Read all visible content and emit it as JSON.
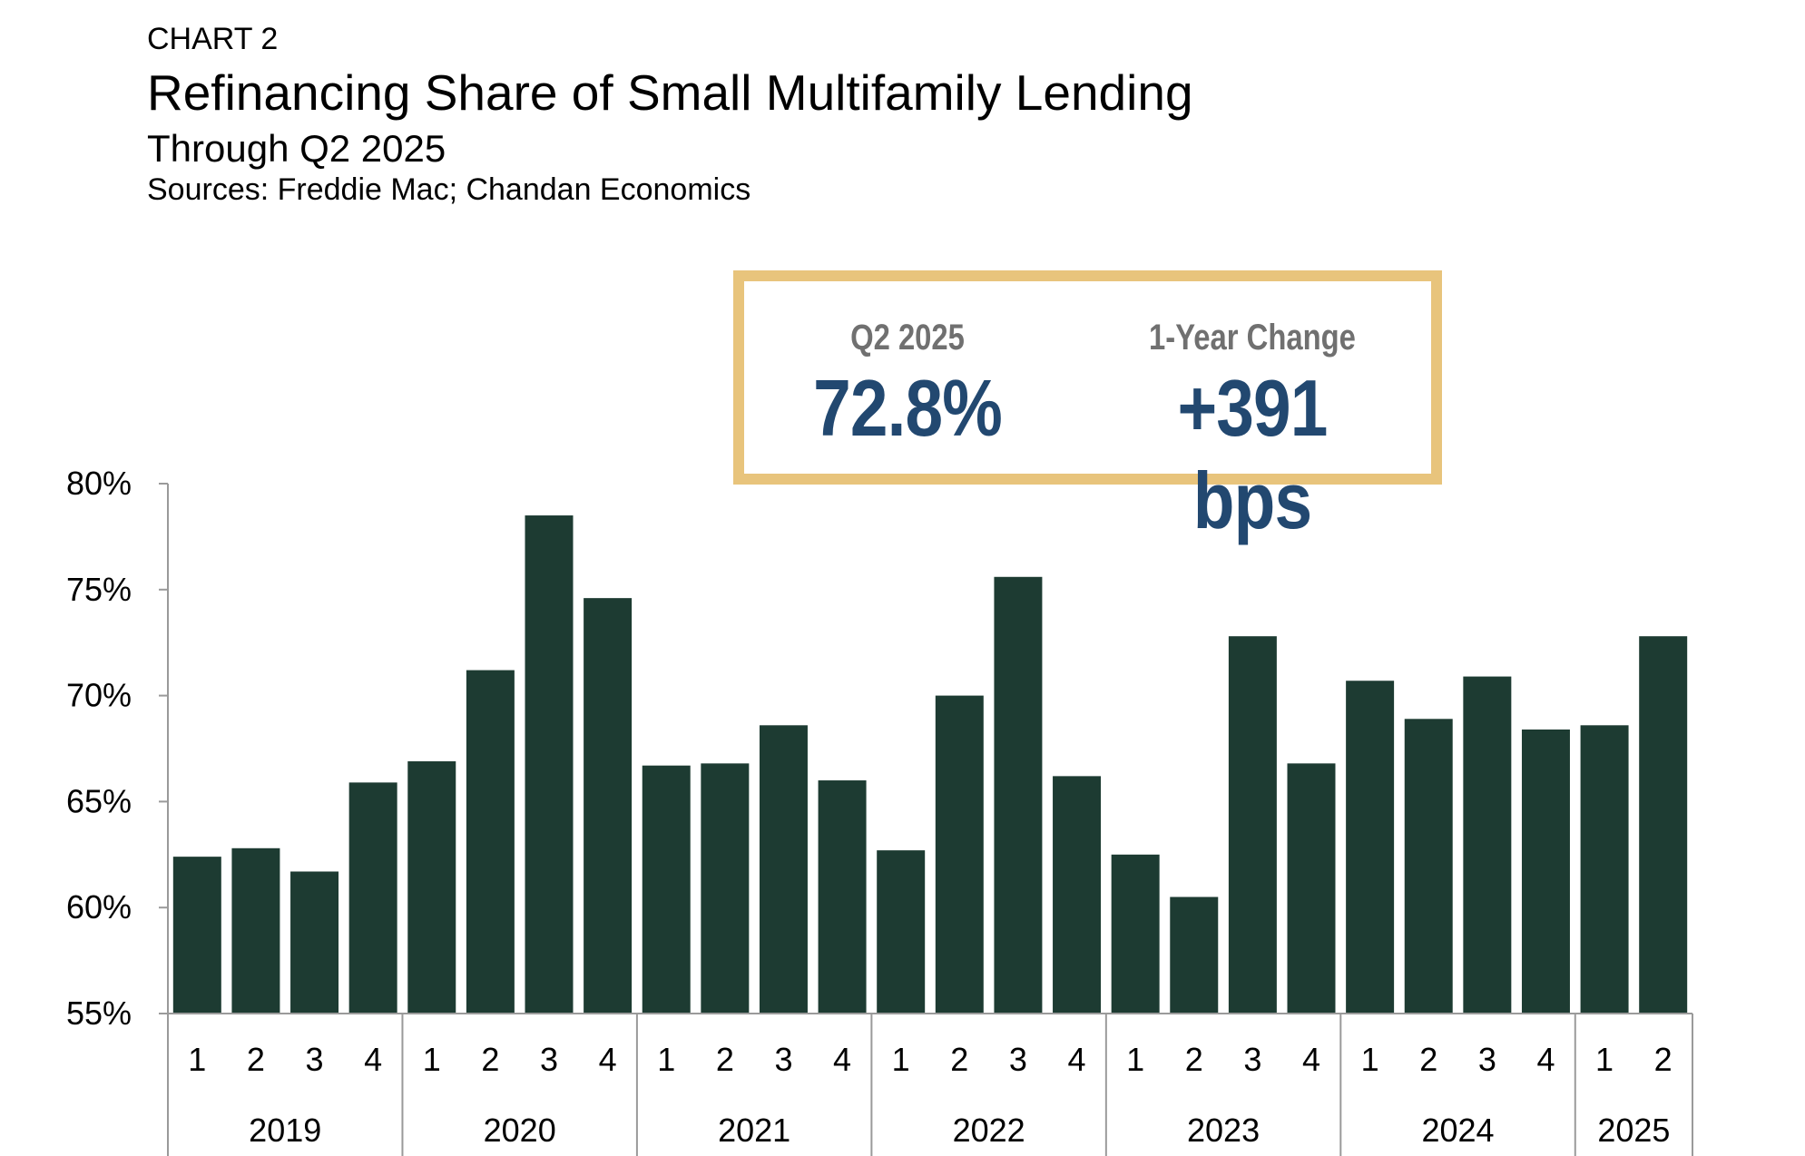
{
  "header": {
    "label": "CHART 2",
    "title": "Refinancing Share of Small Multifamily Lending",
    "subtitle": "Through Q2 2025",
    "sources": "Sources: Freddie Mac; Chandan Economics"
  },
  "kpi": {
    "col1_label": "Q2 2025",
    "col1_value": "72.8%",
    "col2_label": "1-Year Change",
    "col2_value": "+391 bps",
    "border_color": "#e8c47c",
    "value_color": "#224870"
  },
  "chart_data": {
    "type": "bar",
    "bar_color": "#1d3b32",
    "ylim": [
      55,
      80
    ],
    "yticks": [
      "55%",
      "60%",
      "65%",
      "70%",
      "75%",
      "80%"
    ],
    "quarters": [
      "1",
      "2",
      "3",
      "4",
      "1",
      "2",
      "3",
      "4",
      "1",
      "2",
      "3",
      "4",
      "1",
      "2",
      "3",
      "4",
      "1",
      "2",
      "3",
      "4",
      "1",
      "2",
      "3",
      "4",
      "1",
      "2"
    ],
    "years": [
      {
        "label": "2019",
        "count": 4
      },
      {
        "label": "2020",
        "count": 4
      },
      {
        "label": "2021",
        "count": 4
      },
      {
        "label": "2022",
        "count": 4
      },
      {
        "label": "2023",
        "count": 4
      },
      {
        "label": "2024",
        "count": 4
      },
      {
        "label": "2025",
        "count": 2
      }
    ],
    "values": [
      62.4,
      62.8,
      61.7,
      65.9,
      66.9,
      71.2,
      78.5,
      74.6,
      66.7,
      66.8,
      68.6,
      66.0,
      62.7,
      70.0,
      75.6,
      66.2,
      62.5,
      60.5,
      72.8,
      66.8,
      70.7,
      68.9,
      70.9,
      68.4,
      68.6,
      72.8
    ]
  }
}
